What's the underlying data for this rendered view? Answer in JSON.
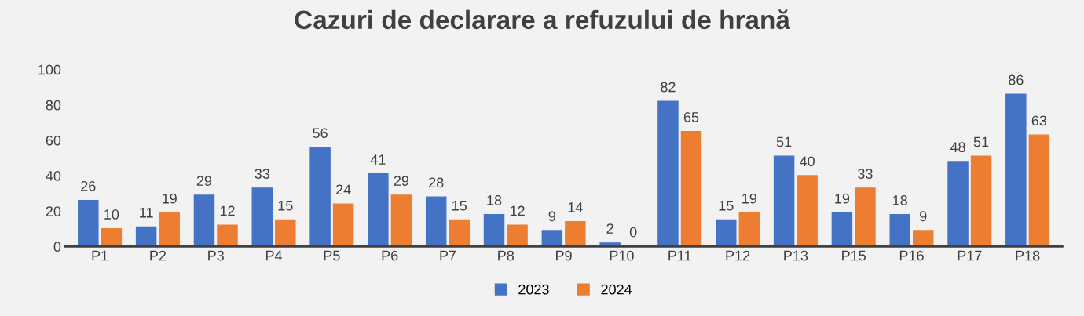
{
  "chart_data": {
    "type": "bar",
    "title": "Cazuri de declarare a refuzului de hrană",
    "categories": [
      "P1",
      "P2",
      "P3",
      "P4",
      "P5",
      "P6",
      "P7",
      "P8",
      "P9",
      "P10",
      "P11",
      "P12",
      "P13",
      "P15",
      "P16",
      "P17",
      "P18"
    ],
    "series": [
      {
        "name": "2023",
        "color": "#4472c4",
        "values": [
          26,
          11,
          29,
          33,
          56,
          41,
          28,
          18,
          9,
          2,
          82,
          15,
          51,
          19,
          18,
          48,
          86
        ]
      },
      {
        "name": "2024",
        "color": "#ed7d31",
        "values": [
          10,
          19,
          12,
          15,
          24,
          29,
          15,
          12,
          14,
          0,
          65,
          19,
          40,
          33,
          9,
          51,
          63
        ]
      }
    ],
    "ylim": [
      0,
      100
    ],
    "yticks": [
      0,
      20,
      40,
      60,
      80,
      100
    ],
    "grid": false,
    "legend": "bottom",
    "data_labels": true
  }
}
